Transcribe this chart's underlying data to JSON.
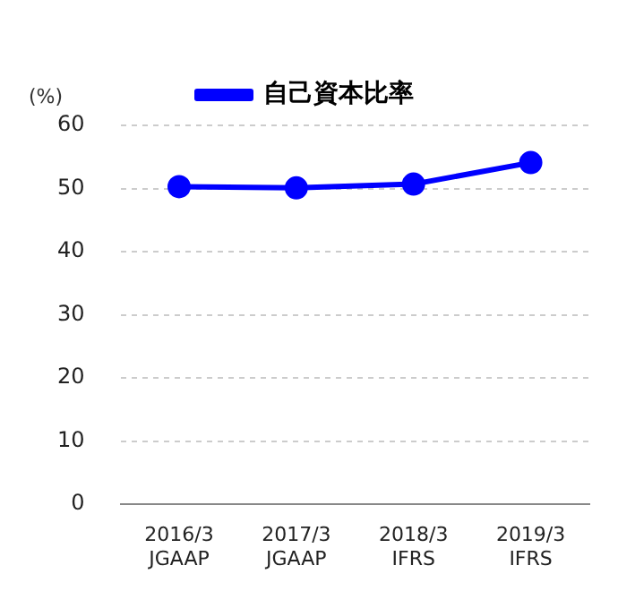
{
  "chart_data": {
    "type": "line",
    "ylabel": "(%)",
    "categories": [
      "2016/3\nJGAAP",
      "2017/3\nJGAAP",
      "2018/3\nIFRS",
      "2019/3\nIFRS"
    ],
    "series": [
      {
        "name": "自己資本比率",
        "color": "#0000ff",
        "values": [
          50.3,
          50.1,
          50.7,
          54.1
        ]
      }
    ],
    "ylim": [
      0,
      60
    ],
    "yticks": [
      0,
      10,
      20,
      30,
      40,
      50,
      60
    ],
    "grid": "y",
    "legend": "top",
    "marker": "circle",
    "line_style": "solid"
  }
}
